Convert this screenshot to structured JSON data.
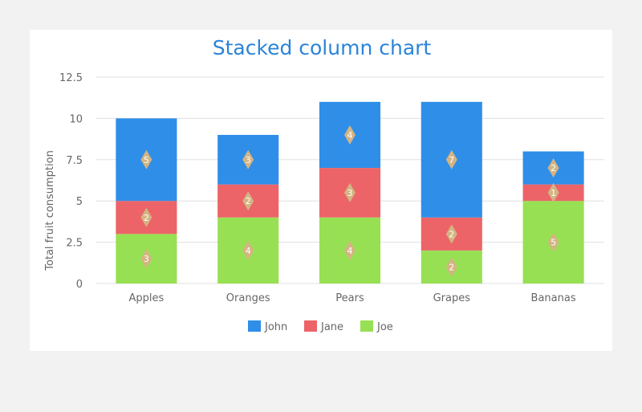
{
  "chart_data": {
    "type": "bar",
    "stacked": true,
    "title": "Stacked column chart",
    "xlabel": "",
    "ylabel": "Total fruit consumption",
    "categories": [
      "Apples",
      "Oranges",
      "Pears",
      "Grapes",
      "Bananas"
    ],
    "series": [
      {
        "name": "Joe",
        "values": [
          3,
          4,
          4,
          2,
          5
        ],
        "color": "#98e053"
      },
      {
        "name": "Jane",
        "values": [
          2,
          2,
          3,
          2,
          1
        ],
        "color": "#ec6467"
      },
      {
        "name": "John",
        "values": [
          5,
          3,
          4,
          7,
          2
        ],
        "color": "#2f8ee8"
      }
    ],
    "legend_order": [
      "John",
      "Jane",
      "Joe"
    ],
    "ylim": [
      0,
      12.5
    ],
    "yticks": [
      "0",
      "2.5",
      "5",
      "7.5",
      "10",
      "12.5"
    ],
    "yticks_values": [
      0,
      2.5,
      5,
      7.5,
      10,
      12.5
    ],
    "grid": true,
    "legend_position": "bottom",
    "data_labels": true,
    "data_label_marker_color": "#d4b483"
  }
}
